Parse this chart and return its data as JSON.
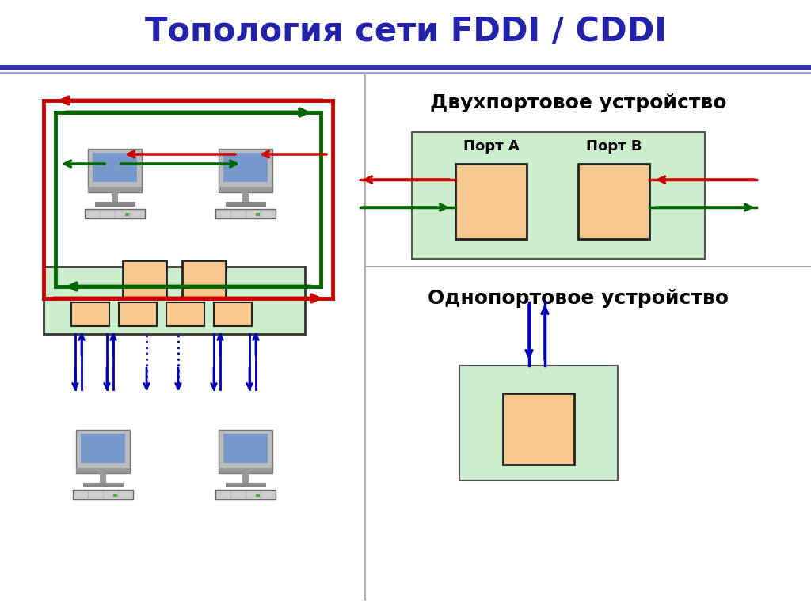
{
  "title": "Топология сети FDDI / CDDI",
  "title_color": "#2222AA",
  "title_fontsize": 30,
  "bg_color": "#ffffff",
  "dual_port_label": "Двухпортовое устройство",
  "single_port_label": "Однопортовое устройство",
  "port_a_label": "Порт А",
  "port_b_label": "Порт В",
  "green_color": "#006600",
  "red_color": "#CC0000",
  "blue_color": "#0000BB",
  "light_green_bg": "#CCEECC",
  "peach_color": "#F5C890",
  "hub_bg": "#CCEECC",
  "ring_lw": 3.5,
  "arrow_lw": 2.5
}
